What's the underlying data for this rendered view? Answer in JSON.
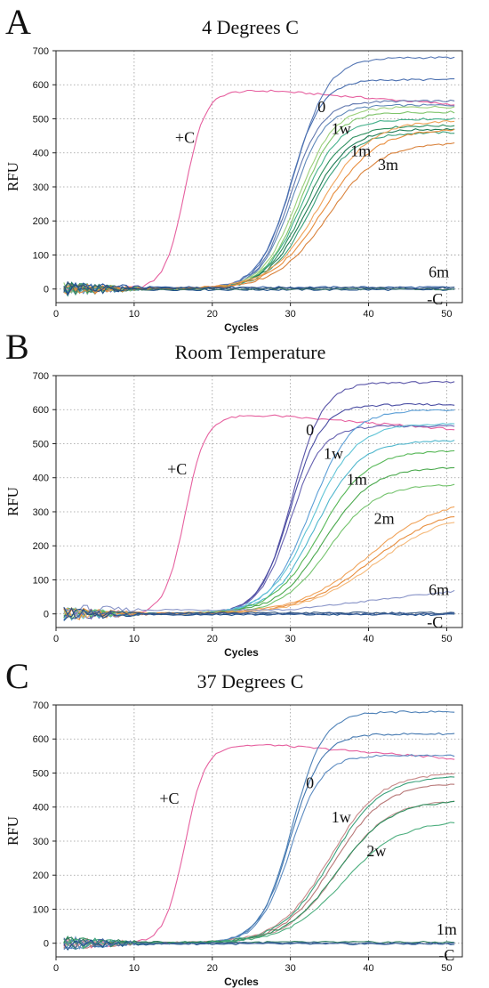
{
  "chart_data": [
    {
      "type": "line",
      "panel_letter": "A",
      "title": "4 Degrees C",
      "xlabel": "Cycles",
      "ylabel": "RFU",
      "xlim": [
        0,
        52
      ],
      "ylim": [
        -40,
        700
      ],
      "xticks": [
        0,
        10,
        20,
        30,
        40,
        50
      ],
      "yticks": [
        0,
        100,
        200,
        300,
        400,
        500,
        600,
        700
      ],
      "grid": true,
      "annotations": [
        {
          "text": "+C",
          "x": 16.5,
          "y": 430
        },
        {
          "text": "0",
          "x": 34,
          "y": 520
        },
        {
          "text": "1w",
          "x": 36.5,
          "y": 455
        },
        {
          "text": "1m",
          "x": 39,
          "y": 390
        },
        {
          "text": "3m",
          "x": 42.5,
          "y": 350
        },
        {
          "text": "6m",
          "x": 49,
          "y": 35
        },
        {
          "text": "-C",
          "x": 48.5,
          "y": -45
        }
      ],
      "series": [
        {
          "color": "#e6609f",
          "ct": 16.5,
          "plateau": 582,
          "slope": 1.3,
          "drift": -40
        },
        {
          "color": "#5778b5",
          "ct": 30.5,
          "plateau": 680,
          "slope": 2.2
        },
        {
          "color": "#4a6fb0",
          "ct": 30.0,
          "plateau": 615,
          "slope": 2.0
        },
        {
          "color": "#6077ae",
          "ct": 30.0,
          "plateau": 552,
          "slope": 2.0
        },
        {
          "color": "#5f88b9",
          "ct": 30.3,
          "plateau": 540,
          "slope": 2.1
        },
        {
          "color": "#9cd07b",
          "ct": 31.0,
          "plateau": 535,
          "slope": 2.3
        },
        {
          "color": "#7fc46a",
          "ct": 31.3,
          "plateau": 520,
          "slope": 2.3
        },
        {
          "color": "#43b08a",
          "ct": 31.5,
          "plateau": 500,
          "slope": 2.4
        },
        {
          "color": "#2c8f5e",
          "ct": 31.8,
          "plateau": 480,
          "slope": 2.5
        },
        {
          "color": "#1f7c55",
          "ct": 32.2,
          "plateau": 470,
          "slope": 2.6
        },
        {
          "color": "#3aa07a",
          "ct": 32.5,
          "plateau": 460,
          "slope": 2.6
        },
        {
          "color": "#f0a35a",
          "ct": 33.8,
          "plateau": 495,
          "slope": 3.2
        },
        {
          "color": "#e88d3c",
          "ct": 34.3,
          "plateau": 470,
          "slope": 3.3
        },
        {
          "color": "#d9813a",
          "ct": 34.8,
          "plateau": 430,
          "slope": 3.3
        },
        {
          "color": "#2a5aa0",
          "flat": 5
        },
        {
          "color": "#1d4e8a",
          "flat": -2
        },
        {
          "color": "#3d7a6a",
          "flat": 0
        },
        {
          "color": "#2c4f7a",
          "flat": 3
        }
      ]
    },
    {
      "type": "line",
      "panel_letter": "B",
      "title": "Room Temperature",
      "xlabel": "Cycles",
      "ylabel": "RFU",
      "xlim": [
        0,
        52
      ],
      "ylim": [
        -40,
        700
      ],
      "xticks": [
        0,
        10,
        20,
        30,
        40,
        50
      ],
      "yticks": [
        0,
        100,
        200,
        300,
        400,
        500,
        600,
        700
      ],
      "grid": true,
      "annotations": [
        {
          "text": "+C",
          "x": 15.5,
          "y": 410
        },
        {
          "text": "0",
          "x": 32.5,
          "y": 525
        },
        {
          "text": "1w",
          "x": 35.5,
          "y": 455
        },
        {
          "text": "1m",
          "x": 38.5,
          "y": 380
        },
        {
          "text": "2m",
          "x": 42,
          "y": 265
        },
        {
          "text": "6m",
          "x": 49,
          "y": 55
        },
        {
          "text": "-C",
          "x": 48.5,
          "y": -40
        }
      ],
      "series": [
        {
          "color": "#e6609f",
          "ct": 16.5,
          "plateau": 582,
          "slope": 1.3,
          "drift": -40
        },
        {
          "color": "#5a55a8",
          "ct": 30.2,
          "plateau": 680,
          "slope": 2.0
        },
        {
          "color": "#4b4ea3",
          "ct": 30.0,
          "plateau": 615,
          "slope": 2.0
        },
        {
          "color": "#6661b0",
          "ct": 30.0,
          "plateau": 552,
          "slope": 2.0
        },
        {
          "color": "#5c9fd6",
          "ct": 32.5,
          "plateau": 600,
          "slope": 2.6
        },
        {
          "color": "#60c4d6",
          "ct": 32.8,
          "plateau": 560,
          "slope": 2.8
        },
        {
          "color": "#4fb6cc",
          "ct": 33.2,
          "plateau": 510,
          "slope": 2.8
        },
        {
          "color": "#58b858",
          "ct": 33.8,
          "plateau": 480,
          "slope": 3.0
        },
        {
          "color": "#49a84c",
          "ct": 34.3,
          "plateau": 430,
          "slope": 3.0
        },
        {
          "color": "#74c36d",
          "ct": 34.8,
          "plateau": 380,
          "slope": 3.0
        },
        {
          "color": "#f0a35a",
          "ct": 40.0,
          "plateau": 340,
          "slope": 4.5
        },
        {
          "color": "#e88d3c",
          "ct": 40.5,
          "plateau": 315,
          "slope": 4.5
        },
        {
          "color": "#f5b97a",
          "ct": 41.0,
          "plateau": 300,
          "slope": 4.5
        },
        {
          "color": "#8a95c8",
          "flat": 12,
          "rise": 55
        },
        {
          "color": "#1d4e8a",
          "flat": -2
        },
        {
          "color": "#2c4f7a",
          "flat": 3
        },
        {
          "color": "#3d5f9a",
          "flat": 0
        }
      ]
    },
    {
      "type": "line",
      "panel_letter": "C",
      "title": "37 Degrees C",
      "xlabel": "Cycles",
      "ylabel": "RFU",
      "xlim": [
        0,
        52
      ],
      "ylim": [
        -40,
        700
      ],
      "xticks": [
        0,
        10,
        20,
        30,
        40,
        50
      ],
      "yticks": [
        0,
        100,
        200,
        300,
        400,
        500,
        600,
        700
      ],
      "grid": true,
      "annotations": [
        {
          "text": "+C",
          "x": 14.5,
          "y": 410
        },
        {
          "text": "0",
          "x": 32.5,
          "y": 455
        },
        {
          "text": "1w",
          "x": 36.5,
          "y": 355
        },
        {
          "text": "2w",
          "x": 41,
          "y": 255
        },
        {
          "text": "1m",
          "x": 50,
          "y": 25
        },
        {
          "text": "-C",
          "x": 50,
          "y": -50
        }
      ],
      "series": [
        {
          "color": "#e6609f",
          "ct": 16.5,
          "plateau": 582,
          "slope": 1.3,
          "drift": -40
        },
        {
          "color": "#4f82b8",
          "ct": 30.2,
          "plateau": 680,
          "slope": 2.0
        },
        {
          "color": "#4478b0",
          "ct": 30.0,
          "plateau": 615,
          "slope": 2.0
        },
        {
          "color": "#5b8ac0",
          "ct": 30.0,
          "plateau": 552,
          "slope": 2.0
        },
        {
          "color": "#c98a8a",
          "ct": 35.0,
          "plateau": 500,
          "slope": 3.2
        },
        {
          "color": "#b87878",
          "ct": 35.5,
          "plateau": 470,
          "slope": 3.2
        },
        {
          "color": "#c49595",
          "ct": 36.0,
          "plateau": 420,
          "slope": 3.3
        },
        {
          "color": "#3aa07a",
          "ct": 35.2,
          "plateau": 490,
          "slope": 3.2
        },
        {
          "color": "#2c8f5e",
          "ct": 36.0,
          "plateau": 420,
          "slope": 3.4
        },
        {
          "color": "#4cae7e",
          "ct": 36.8,
          "plateau": 360,
          "slope": 3.6
        },
        {
          "color": "#2a7a5a",
          "flat": 3
        },
        {
          "color": "#1d4e8a",
          "flat": -2
        },
        {
          "color": "#4a6aa0",
          "flat": 0
        }
      ]
    }
  ]
}
